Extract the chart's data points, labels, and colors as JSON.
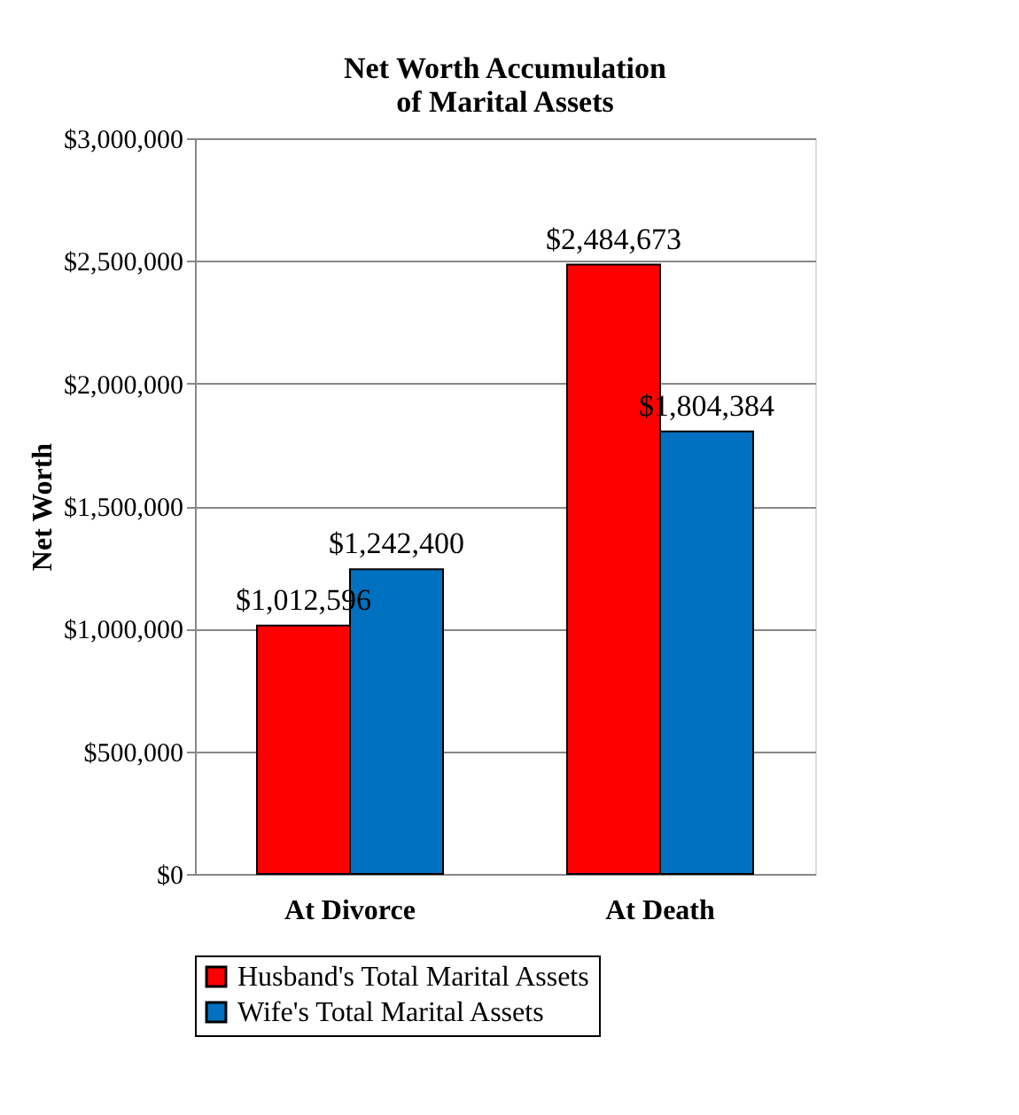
{
  "chart_data": {
    "type": "bar",
    "title": "Net Worth Accumulation\nof Marital Assets",
    "ylabel": "Net Worth",
    "categories": [
      "At Divorce",
      "At Death"
    ],
    "series": [
      {
        "name": "Husband's Total Marital Assets",
        "color": "#ff0000",
        "values": [
          1012596,
          2484673
        ],
        "value_labels": [
          "$1,012,596",
          "$2,484,673"
        ]
      },
      {
        "name": "Wife's Total Marital Assets",
        "color": "#0070c0",
        "values": [
          1242400,
          1804384
        ],
        "value_labels": [
          "$1,242,400",
          "$1,804,384"
        ]
      }
    ],
    "ylim": [
      0,
      3000000
    ],
    "yticks": [
      {
        "value": 0,
        "label": "$0"
      },
      {
        "value": 500000,
        "label": "$500,000"
      },
      {
        "value": 1000000,
        "label": "$1,000,000"
      },
      {
        "value": 1500000,
        "label": "$1,500,000"
      },
      {
        "value": 2000000,
        "label": "$2,000,000"
      },
      {
        "value": 2500000,
        "label": "$2,500,000"
      },
      {
        "value": 3000000,
        "label": "$3,000,000"
      }
    ],
    "grid": "y",
    "legend": "bottom"
  }
}
